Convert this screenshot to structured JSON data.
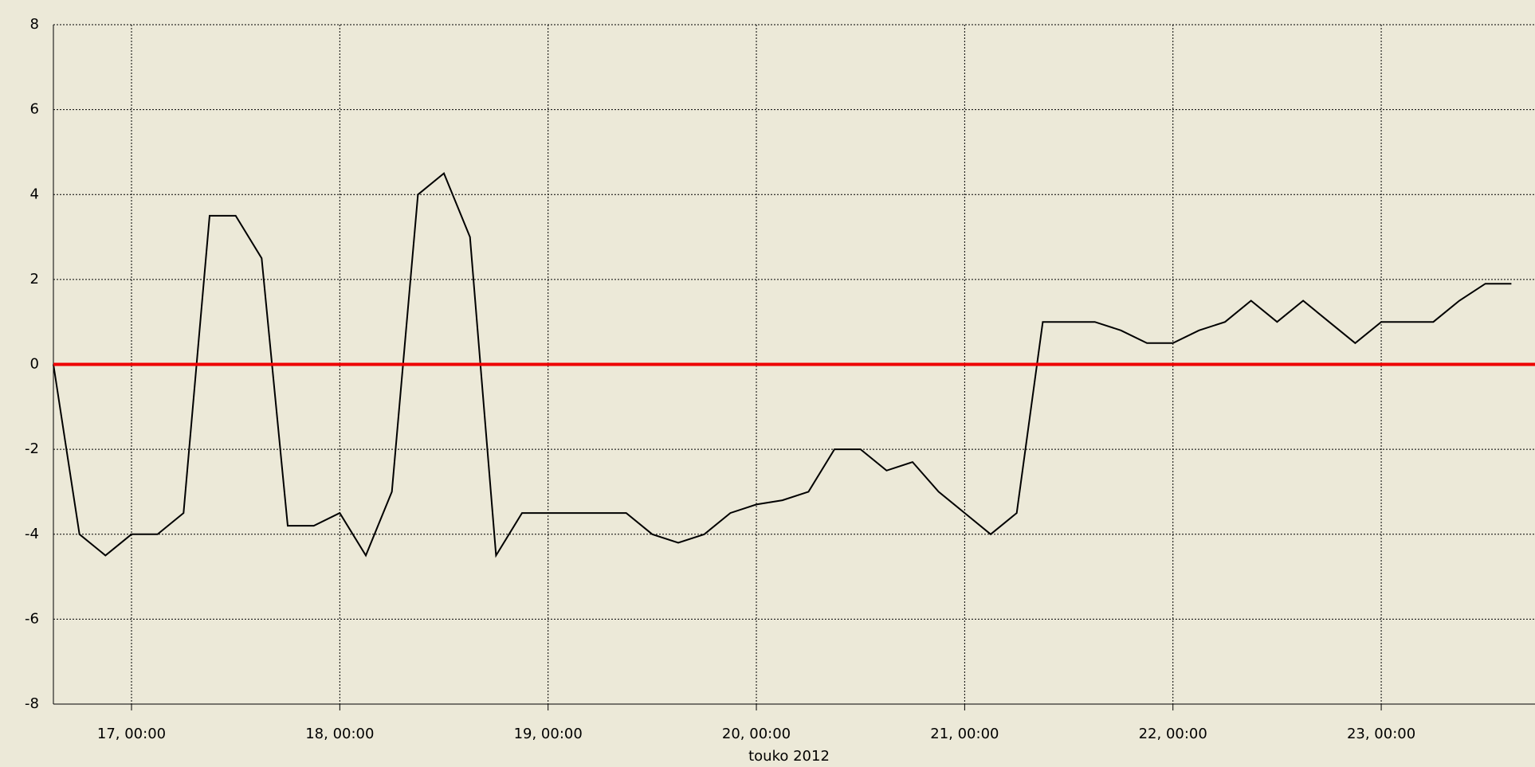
{
  "chart_data": {
    "type": "line",
    "xlabel": "touko 2012",
    "x": [
      "2012-05-16T15:00",
      "2012-05-16T18:00",
      "2012-05-16T21:00",
      "2012-05-17T00:00",
      "2012-05-17T03:00",
      "2012-05-17T06:00",
      "2012-05-17T09:00",
      "2012-05-17T12:00",
      "2012-05-17T15:00",
      "2012-05-17T18:00",
      "2012-05-17T21:00",
      "2012-05-18T00:00",
      "2012-05-18T03:00",
      "2012-05-18T06:00",
      "2012-05-18T09:00",
      "2012-05-18T12:00",
      "2012-05-18T15:00",
      "2012-05-18T18:00",
      "2012-05-18T21:00",
      "2012-05-19T00:00",
      "2012-05-19T03:00",
      "2012-05-19T06:00",
      "2012-05-19T09:00",
      "2012-05-19T12:00",
      "2012-05-19T15:00",
      "2012-05-19T18:00",
      "2012-05-19T21:00",
      "2012-05-20T00:00",
      "2012-05-20T03:00",
      "2012-05-20T06:00",
      "2012-05-20T09:00",
      "2012-05-20T12:00",
      "2012-05-20T15:00",
      "2012-05-20T18:00",
      "2012-05-20T21:00",
      "2012-05-21T00:00",
      "2012-05-21T03:00",
      "2012-05-21T06:00",
      "2012-05-21T09:00",
      "2012-05-21T12:00",
      "2012-05-21T15:00",
      "2012-05-21T18:00",
      "2012-05-21T21:00",
      "2012-05-22T00:00",
      "2012-05-22T03:00",
      "2012-05-22T06:00",
      "2012-05-22T09:00",
      "2012-05-22T12:00",
      "2012-05-22T15:00",
      "2012-05-22T18:00",
      "2012-05-22T21:00",
      "2012-05-23T00:00",
      "2012-05-23T03:00",
      "2012-05-23T06:00",
      "2012-05-23T09:00",
      "2012-05-23T12:00",
      "2012-05-23T15:00"
    ],
    "series": [
      {
        "color": "#000000",
        "values": [
          0,
          -4,
          -4.5,
          -4,
          -4,
          -3.5,
          3.5,
          3.5,
          2.5,
          -3.8,
          -3.8,
          -3.5,
          -4.5,
          -3,
          4,
          4.5,
          3,
          -4.5,
          -3.5,
          -3.5,
          -3.5,
          -3.5,
          -3.5,
          -4,
          -4.2,
          -4,
          -3.5,
          -3.3,
          -3.2,
          -3,
          -2,
          -2,
          -2.5,
          -2.3,
          -3,
          -3.5,
          -4,
          -3.5,
          1,
          1,
          1,
          0.8,
          0.5,
          0.5,
          0.8,
          1,
          1.5,
          1,
          1.5,
          1,
          0.5,
          1,
          1,
          1,
          1.5,
          1.9,
          1.9
        ]
      }
    ],
    "xlim": [
      "2012-05-16T15:00",
      "2012-05-23T17:10"
    ],
    "xticks": [
      {
        "value": "2012-05-17T00:00",
        "label": "17, 00:00"
      },
      {
        "value": "2012-05-18T00:00",
        "label": "18, 00:00"
      },
      {
        "value": "2012-05-19T00:00",
        "label": "19, 00:00"
      },
      {
        "value": "2012-05-20T00:00",
        "label": "20, 00:00"
      },
      {
        "value": "2012-05-21T00:00",
        "label": "21, 00:00"
      },
      {
        "value": "2012-05-22T00:00",
        "label": "22, 00:00"
      },
      {
        "value": "2012-05-23T00:00",
        "label": "23, 00:00"
      }
    ],
    "ylim": [
      -8,
      8
    ],
    "yticks": [
      8,
      6,
      4,
      2,
      0,
      -2,
      -4,
      -6,
      -8
    ],
    "grid": true,
    "reference_line": {
      "value": 0,
      "color": "#ee0000"
    }
  }
}
